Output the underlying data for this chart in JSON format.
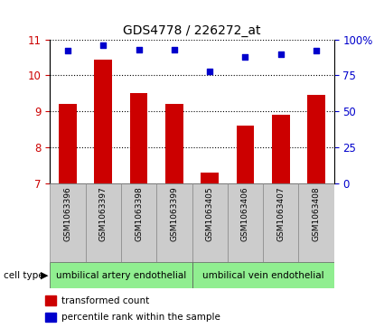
{
  "title": "GDS4778 / 226272_at",
  "samples": [
    "GSM1063396",
    "GSM1063397",
    "GSM1063398",
    "GSM1063399",
    "GSM1063405",
    "GSM1063406",
    "GSM1063407",
    "GSM1063408"
  ],
  "transformed_count": [
    9.2,
    10.45,
    9.5,
    9.2,
    7.3,
    8.6,
    8.9,
    9.45
  ],
  "percentile_rank": [
    92,
    96,
    93,
    93,
    78,
    88,
    90,
    92
  ],
  "ylim_left": [
    7,
    11
  ],
  "ylim_right": [
    0,
    100
  ],
  "yticks_left": [
    7,
    8,
    9,
    10,
    11
  ],
  "yticks_right": [
    0,
    25,
    50,
    75,
    100
  ],
  "bar_color": "#cc0000",
  "dot_color": "#0000cc",
  "cell_types": [
    {
      "label": "umbilical artery endothelial",
      "n": 4
    },
    {
      "label": "umbilical vein endothelial",
      "n": 4
    }
  ],
  "cell_type_color": "#90ee90",
  "legend_items": [
    {
      "label": "transformed count",
      "color": "#cc0000"
    },
    {
      "label": "percentile rank within the sample",
      "color": "#0000cc"
    }
  ],
  "bg_color": "#ffffff",
  "tick_label_area_bg": "#cccccc",
  "left_axis_color": "#cc0000",
  "right_axis_color": "#0000cc",
  "bar_width": 0.5,
  "dot_size": 20
}
